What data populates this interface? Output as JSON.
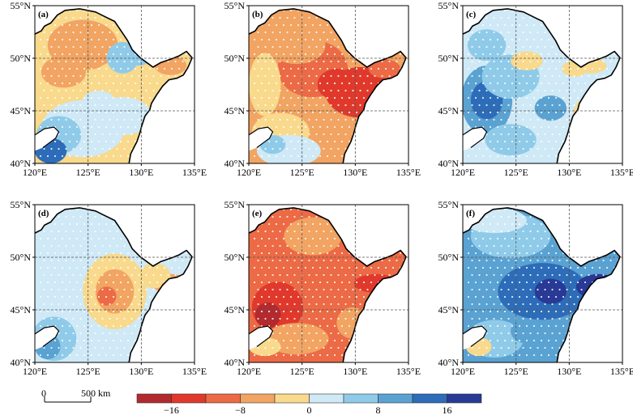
{
  "panels": [
    {
      "id": "a",
      "label": "(a)",
      "pattern": "a"
    },
    {
      "id": "b",
      "label": "(b)",
      "pattern": "b"
    },
    {
      "id": "c",
      "label": "(c)",
      "pattern": "c"
    },
    {
      "id": "d",
      "label": "(d)",
      "pattern": "d"
    },
    {
      "id": "e",
      "label": "(e)",
      "pattern": "e"
    },
    {
      "id": "f",
      "label": "(f)",
      "pattern": "f"
    }
  ],
  "axes": {
    "lon_ticks": [
      "120°E",
      "125°E",
      "130°E",
      "135°E"
    ],
    "lat_ticks": [
      "55°N",
      "50°N",
      "45°N",
      "40°N"
    ],
    "lon_range": [
      120,
      135
    ],
    "lat_range": [
      40,
      55
    ],
    "grid_lon": [
      125,
      130
    ],
    "grid_lat": [
      45,
      50
    ],
    "grid_style": "dashed"
  },
  "scale_bar": {
    "start": "0",
    "end": "500 km"
  },
  "colorbar": {
    "colors": [
      "#b22a2e",
      "#e0392c",
      "#ec6a45",
      "#f2a462",
      "#f9d98c",
      "#cfe9f6",
      "#8fcbe9",
      "#5aa2d2",
      "#2d6cb8",
      "#283996"
    ],
    "tick_labels": [
      {
        "text": "−16",
        "index": 1
      },
      {
        "text": "−8",
        "index": 3
      },
      {
        "text": "0",
        "index": 5
      },
      {
        "text": "8",
        "index": 7
      },
      {
        "text": "16",
        "index": 9
      }
    ]
  }
}
